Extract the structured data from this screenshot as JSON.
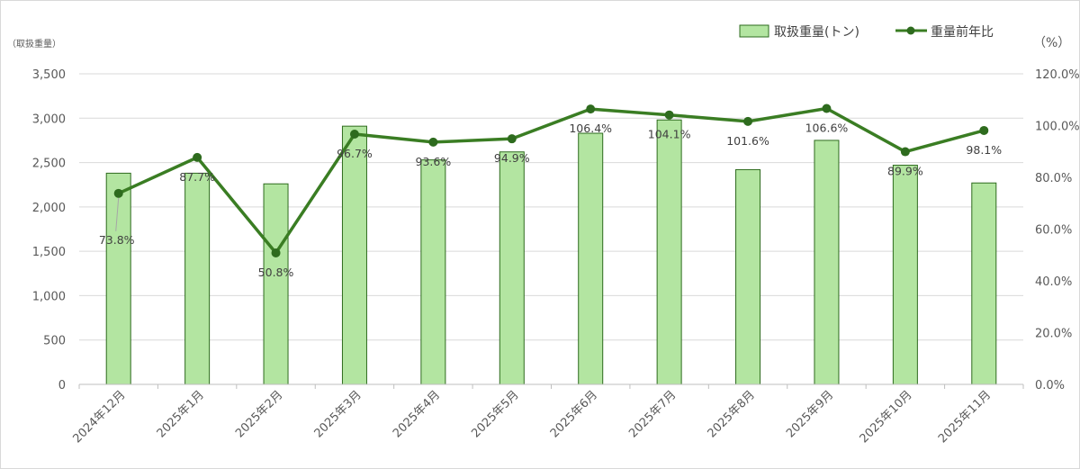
{
  "chart_data": {
    "type": "bar+line",
    "categories": [
      "2024年12月",
      "2025年1月",
      "2025年2月",
      "2025年3月",
      "2025年4月",
      "2025年5月",
      "2025年6月",
      "2025年7月",
      "2025年8月",
      "2025年9月",
      "2025年10月",
      "2025年11月"
    ],
    "series": [
      {
        "name": "取扱重量(トン)",
        "type": "bar",
        "axis": "left",
        "color": "#b3e5a1",
        "border_color": "#2e6b1e",
        "values": [
          2380,
          2380,
          2260,
          2910,
          2530,
          2620,
          2830,
          2980,
          2420,
          2750,
          2470,
          2270
        ]
      },
      {
        "name": "重量前年比",
        "type": "line",
        "axis": "right",
        "color": "#3a7d23",
        "values": [
          73.8,
          87.7,
          50.8,
          96.7,
          93.6,
          94.9,
          106.4,
          104.1,
          101.6,
          106.6,
          89.9,
          98.1
        ],
        "data_labels": [
          "73.8%",
          "87.7%",
          "50.8%",
          "96.7%",
          "93.6%",
          "94.9%",
          "106.4%",
          "104.1%",
          "101.6%",
          "106.6%",
          "89.9%",
          "98.1%"
        ]
      }
    ],
    "y_left": {
      "label": "（取扱重量）",
      "ylim": [
        0,
        3500
      ],
      "ticks": [
        "0",
        "500",
        "1,000",
        "1,500",
        "2,000",
        "2,500",
        "3,000",
        "3,500"
      ]
    },
    "y_right": {
      "label": "（%）",
      "ylim": [
        0,
        120
      ],
      "ticks": [
        "0.0%",
        "20.0%",
        "40.0%",
        "60.0%",
        "80.0%",
        "100.0%",
        "120.0%"
      ]
    },
    "grid": true,
    "legend_position": "top-right"
  }
}
